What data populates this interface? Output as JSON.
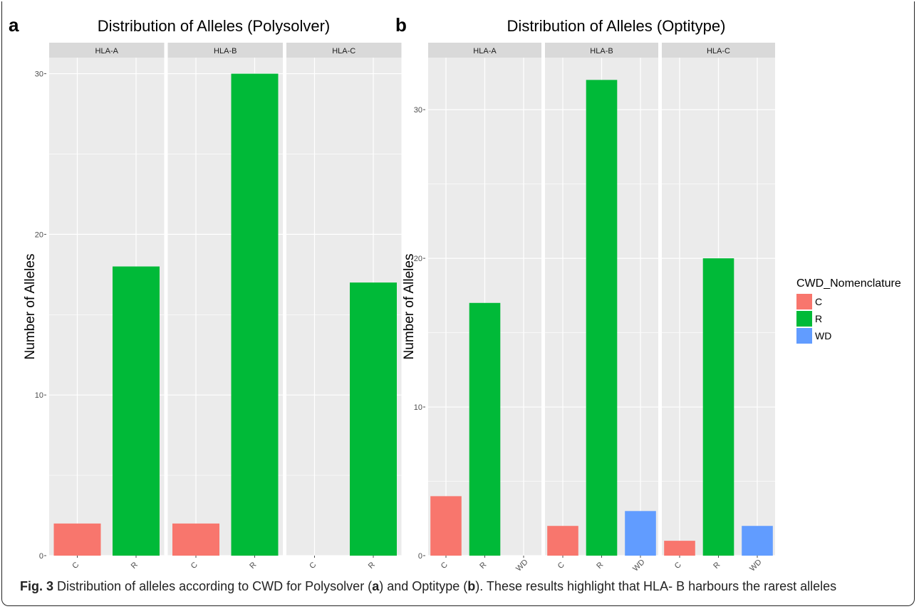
{
  "colors": {
    "C": "#F8766D",
    "R": "#00BA38",
    "WD": "#619CFF"
  },
  "chart_data": [
    {
      "panel": "a",
      "type": "bar",
      "title": "Distribution of Alleles (Polysolver)",
      "ylabel": "Number of Alleles",
      "xlabel": "",
      "ylim": [
        0,
        31
      ],
      "yticks": [
        0,
        10,
        20,
        30
      ],
      "legend": null,
      "facets": [
        {
          "name": "HLA-A",
          "categories": [
            "C",
            "R"
          ],
          "values": [
            2,
            18
          ]
        },
        {
          "name": "HLA-B",
          "categories": [
            "C",
            "R"
          ],
          "values": [
            2,
            30
          ]
        },
        {
          "name": "HLA-C",
          "categories": [
            "C",
            "R"
          ],
          "values": [
            0,
            17
          ]
        }
      ]
    },
    {
      "panel": "b",
      "type": "bar",
      "title": "Distribution of Alleles (Optitype)",
      "ylabel": "Number of Alleles",
      "xlabel": "",
      "ylim": [
        0,
        33.5
      ],
      "yticks": [
        0,
        10,
        20,
        30
      ],
      "legend": {
        "title": "CWD_Nomenclature",
        "entries": [
          "C",
          "R",
          "WD"
        ],
        "position": "right"
      },
      "facets": [
        {
          "name": "HLA-A",
          "categories": [
            "C",
            "R",
            "WD"
          ],
          "values": [
            4,
            17,
            0
          ]
        },
        {
          "name": "HLA-B",
          "categories": [
            "C",
            "R",
            "WD"
          ],
          "values": [
            2,
            32,
            3
          ]
        },
        {
          "name": "HLA-C",
          "categories": [
            "C",
            "R",
            "WD"
          ],
          "values": [
            1,
            20,
            2
          ]
        }
      ]
    }
  ],
  "caption": {
    "label": "Fig. 3",
    "text_1": " Distribution of alleles according to CWD for Polysolver (",
    "a": "a",
    "text_2": ") and Optitype (",
    "b": "b",
    "text_3": "). These results highlight that HLA- B harbours the rarest alleles"
  }
}
